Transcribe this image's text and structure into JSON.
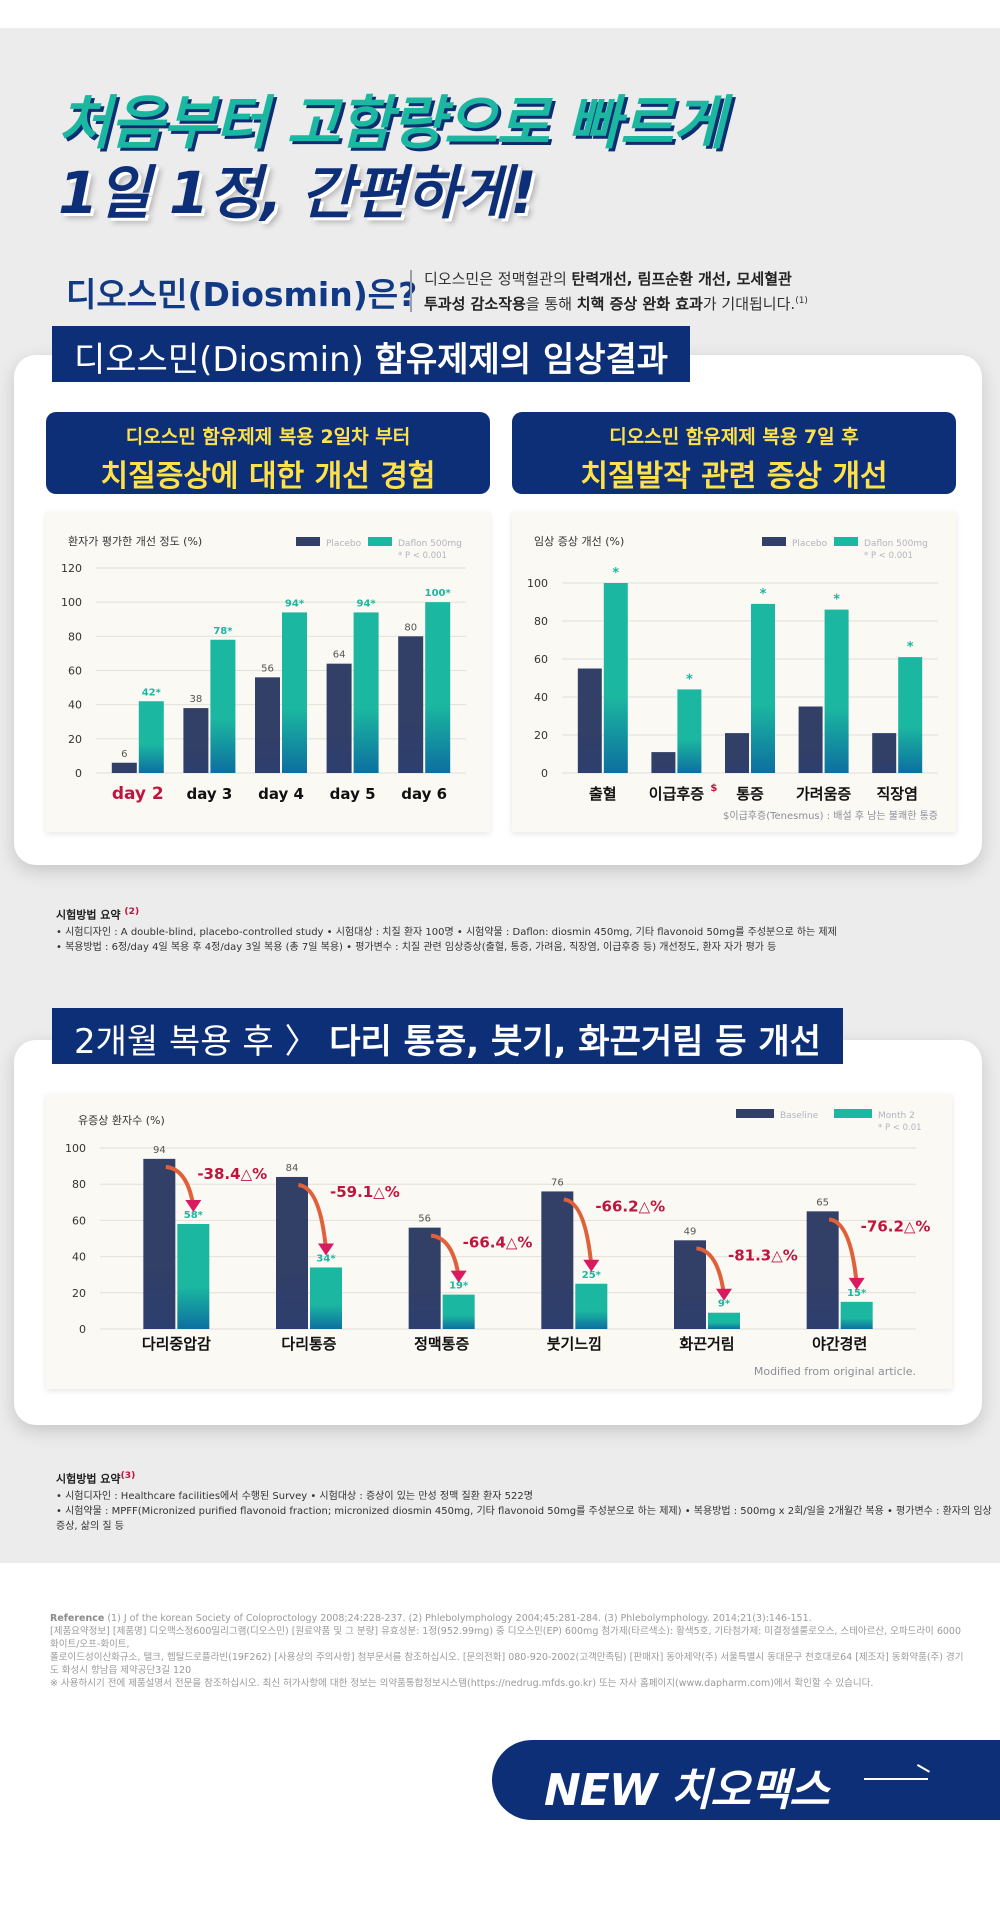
{
  "headline": {
    "line1": "처음부터 고함량으로 빠르게",
    "line2": "1일 1정,  간편하게!"
  },
  "intro": {
    "title": "디오스민(Diosmin)은?",
    "line1_a": "디오스민은 정맥혈관의 ",
    "line1_b": "탄력개선, 림프순환 개선, 모세혈관",
    "line2_a": "투과성 감소작용",
    "line2_b": "을 통해 ",
    "line2_c": "치핵 증상 완화 효과",
    "line2_d": "가 기대됩니다.",
    "sup": "(1)"
  },
  "section1": {
    "label_a": "디오스민(Diosmin) ",
    "label_b": "함유제제의 임상결과",
    "left_sub1_a": "디오스민 함유제제 복용 ",
    "left_sub1_b": "2일차 부터",
    "left_sub2": "치질증상에 대한 개선 경험",
    "right_sub1_a": "디오스민 함유제제 복용 ",
    "right_sub1_b": "7일 후",
    "right_sub2": "치질발작 관련 증상 개선"
  },
  "method1": {
    "title": "시험방법 요약",
    "sup": "(2)",
    "line1": "• 시험디자인 : A double-blind, placebo-controlled study    • 시험대상 : 치질 환자 100명    • 시험약물 : Daflon: diosmin 450mg, 기타 flavonoid 50mg를 주성분으로 하는 제제",
    "line2": "• 복용방법 : 6정/day 4일 복용 후 4정/day 3일 복용 (총 7일 복용)    • 평가변수 : 치질 관련 임상증상(출혈, 통증, 가려움, 직장염, 이급후증 등) 개선정도, 환자 자가 평가 등"
  },
  "section2": {
    "label_a": "2개월 복용 후 〉 ",
    "label_b": "다리 통증, 붓기, 화끈거림 등 개선"
  },
  "method2": {
    "title": "시험방법 요약",
    "sup": "(3)",
    "line1": "• 시험디자인 : Healthcare facilities에서 수행된 Survey    • 시험대상 : 증상이 있는 만성 정맥 질환 환자 522명",
    "line2": "• 시험약물 : MPFF(Micronized purified flavonoid fraction; micronized diosmin 450mg, 기타 flavonoid 50mg를 주성분으로 하는 제제)    • 복용방법 : 500mg x 2회/일을 2개월간 복용    • 평가변수 : 환자의 임상 증상, 삶의 질 등"
  },
  "references": {
    "line1_label": "Reference",
    "line1": "(1) J of the korean Society of Coloproctology 2008;24:228-237. (2) Phlebolymphology 2004;45:281-284. (3) Phlebolymphology. 2014;21(3):146-151.",
    "line2": "[제품요약정보] [제품명] 디오맥스정600밀리그램(디오스민) [원료약품 및 그 분량] 유효성분: 1정(952.99mg) 중 디오스민(EP) 600mg 첨가제(타르색소): 황색5호, 기타첨가제: 미결정셀룰로오스, 스테아르산, 오파드라이 6000 화이트/오프-화이트,",
    "line3": "폴로이드성이산화규소, 탤크, 헵탈드로플라빈(19F262) [사용상의 주의사항] 첨부문서를 참조하십시오. [문의전화] 080-920-2002(고객만족팀) [판매자] 동아제약(주) 서울특별시 동대문구 천호대로64 [제조자] 동화약품(주) 경기도 화성시 향남읍 제약공단3길 120",
    "line4": "※ 사용하시기 전에 제품설명서 전문을 참조하십시오. 최신 허가사항에 대한 정보는 의약품통합정보시스템(https://nedrug.mfds.go.kr) 또는 자사 홈페이지(www.dapharm.com)에서 확인할 수 있습니다."
  },
  "cta": {
    "label": "NEW 치오맥스"
  },
  "colors": {
    "navy": "#323f66",
    "teal": "#1bb7a0",
    "red": "#c0143c",
    "brand_navy": "#0d2f77"
  },
  "chart_data": [
    {
      "type": "bar",
      "ylabel": "환자가 평가한 개선 정도 (%)",
      "ylim": [
        0,
        120
      ],
      "yticks": [
        "0",
        "20",
        "40",
        "60",
        "80",
        "100",
        "120"
      ],
      "categories": [
        "day 2",
        "day 3",
        "day 4",
        "day 5",
        "day 6"
      ],
      "series": [
        {
          "name": "Placebo",
          "values": [
            6,
            38,
            56,
            64,
            80
          ],
          "labels": [
            "6",
            "38",
            "56",
            "64",
            "80"
          ]
        },
        {
          "name": "Daflon 500mg",
          "values": [
            42,
            78,
            94,
            94,
            100
          ],
          "labels": [
            "42*",
            "78*",
            "94*",
            "94*",
            "100*"
          ]
        }
      ],
      "note": "* P < 0.001",
      "legend": "top-right"
    },
    {
      "type": "bar",
      "ylabel": "임상 증상 개선 (%)",
      "ylim": [
        0,
        100
      ],
      "yticks": [
        "0",
        "20",
        "40",
        "60",
        "80",
        "100"
      ],
      "categories": [
        "출혈",
        "이급후증",
        "통증",
        "가려움증",
        "직장염"
      ],
      "series": [
        {
          "name": "Placebo",
          "values": [
            55,
            11,
            21,
            35,
            21
          ]
        },
        {
          "name": "Daflon 500mg",
          "values": [
            100,
            44,
            89,
            86,
            61
          ],
          "labels": [
            "*",
            "*",
            "*",
            "*",
            "*"
          ]
        }
      ],
      "note": "* P < 0.001",
      "category_mark": "$",
      "footnote": "$이급후증(Tenesmus) : 배설 후 남는 불쾌한 통증",
      "legend": "top-right"
    },
    {
      "type": "bar",
      "ylabel": "유증상 환자수 (%)",
      "ylim": [
        0,
        100
      ],
      "yticks": [
        "0",
        "20",
        "40",
        "60",
        "80",
        "100"
      ],
      "categories": [
        "다리중압감",
        "다리통증",
        "정맥통증",
        "붓기느낌",
        "화끈거림",
        "야간경련"
      ],
      "series": [
        {
          "name": "Baseline",
          "values": [
            94,
            84,
            56,
            76,
            49,
            65
          ],
          "labels": [
            "94",
            "84",
            "56",
            "76",
            "49",
            "65"
          ]
        },
        {
          "name": "Month 2",
          "values": [
            58,
            34,
            19,
            25,
            9,
            15
          ],
          "labels": [
            "58*",
            "34*",
            "19*",
            "25*",
            "9*",
            "15*"
          ]
        }
      ],
      "changes": [
        "-38.4△%",
        "-59.1△%",
        "-66.4△%",
        "-66.2△%",
        "-81.3△%",
        "-76.2△%"
      ],
      "note": "* P < 0.01",
      "source": "Modified from original article.",
      "legend": "top-right"
    }
  ]
}
